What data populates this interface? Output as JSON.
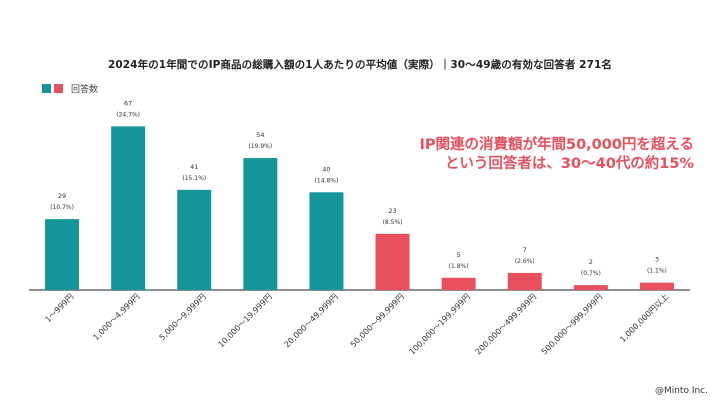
{
  "chart_data": {
    "type": "bar",
    "title": "2024年の1年間でのIP商品の総購入額の1人あたりの平均値（実際）｜30〜49歳の有効な回答者 271名",
    "legend": "回答数",
    "categories": [
      "1〜999円",
      "1,000〜4,999円",
      "5,000〜9,999円",
      "10,000〜19,999円",
      "20,000〜49,999円",
      "50,000〜99,999円",
      "100,000〜199,999円",
      "200,000〜499,999円",
      "500,000〜999,999円",
      "1,000,000円以上"
    ],
    "values": [
      29,
      67,
      41,
      54,
      40,
      23,
      5,
      7,
      2,
      3
    ],
    "percent_labels": [
      "(10.7%)",
      "(24.7%)",
      "(15.1%)",
      "(19.9%)",
      "(14.8%)",
      "(8.5%)",
      "(1.8%)",
      "(2.6%)",
      "(0.7%)",
      "(1.1%)"
    ],
    "ylim": [
      0,
      70
    ],
    "colors": {
      "teal": "#13959a",
      "pink": "#e8505e"
    },
    "highlight_from_index": 5
  },
  "callout": {
    "line1": "IP関連の消費額が年間50,000円を超える",
    "line2": "という回答者は、30〜40代の約15%"
  },
  "credit": "@Minto Inc."
}
